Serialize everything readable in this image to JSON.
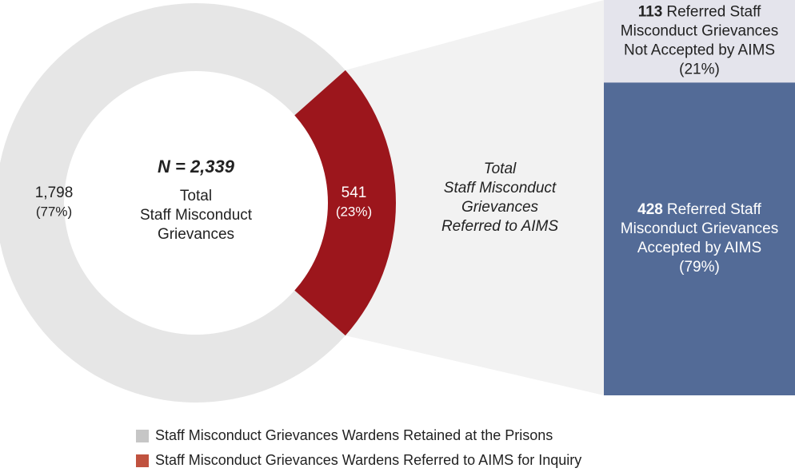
{
  "chart_data": {
    "type": "bar-of-donut",
    "center_title": "N = 2,339",
    "center_text": [
      "Total",
      "Staff Misconduct",
      "Grievances"
    ],
    "categories": [
      "Staff Misconduct Grievances Wardens Retained at the Prisons",
      "Staff Misconduct Grievances Wardens Referred to AIMS for Inquiry"
    ],
    "values": [
      1798,
      541
    ],
    "value_labels": [
      "1,798",
      "541"
    ],
    "percent_labels": [
      "(77%)",
      "(23%)"
    ],
    "colors": [
      "#e6e6e6",
      "#9c161c"
    ],
    "legend_colors": [
      "#c6c6c6",
      "#c0523f"
    ],
    "connector_text": [
      "Total",
      "Staff Misconduct",
      "Grievances",
      "Referred to AIMS"
    ],
    "breakdown": {
      "values": [
        113,
        428
      ],
      "texts": [
        [
          "Referred Staff",
          "Misconduct Grievances",
          "Not Accepted by AIMS"
        ],
        [
          "Referred Staff",
          "Misconduct Grievances",
          "Accepted by AIMS"
        ]
      ],
      "percent_labels": [
        "(21%)",
        "(79%)"
      ],
      "colors": [
        "#e4e4ec",
        "#536b97"
      ],
      "text_colors": [
        "#222222",
        "#ffffff"
      ]
    }
  }
}
